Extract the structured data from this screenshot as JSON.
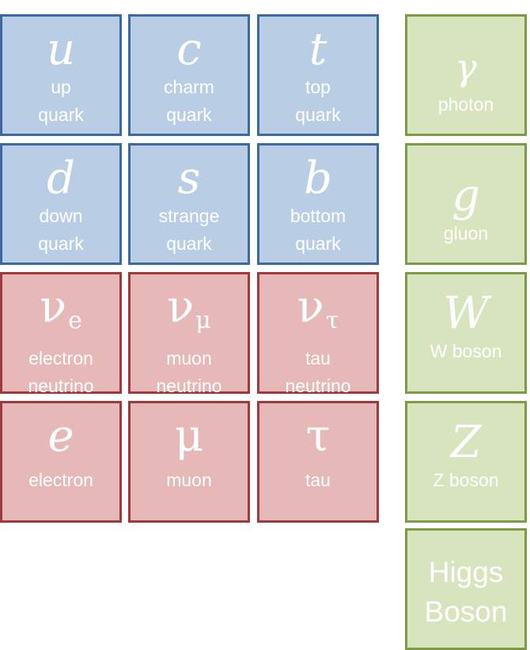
{
  "quarks": [
    {
      "symbol": "u",
      "name1": "up",
      "name2": "quark"
    },
    {
      "symbol": "c",
      "name1": "charm",
      "name2": "quark"
    },
    {
      "symbol": "t",
      "name1": "top",
      "name2": "quark"
    },
    {
      "symbol": "d",
      "name1": "down",
      "name2": "quark"
    },
    {
      "symbol": "s",
      "name1": "strange",
      "name2": "quark"
    },
    {
      "symbol": "b",
      "name1": "bottom",
      "name2": "quark"
    }
  ],
  "neutrinos": [
    {
      "symbol": "ν",
      "sub": "e",
      "name1": "electron",
      "name2": "neutrino"
    },
    {
      "symbol": "ν",
      "sub": "μ",
      "name1": "muon",
      "name2": "neutrino"
    },
    {
      "symbol": "ν",
      "sub": "τ",
      "name1": "tau",
      "name2": "neutrino"
    }
  ],
  "leptons": [
    {
      "symbol": "e",
      "name": "electron"
    },
    {
      "symbol": "μ",
      "name": "muon"
    },
    {
      "symbol": "τ",
      "name": "tau"
    }
  ],
  "bosons": [
    {
      "symbol": "γ",
      "name": "photon"
    },
    {
      "symbol": "g",
      "name": "gluon"
    },
    {
      "symbol": "W",
      "name": "W boson"
    },
    {
      "symbol": "Z",
      "name": "Z boson"
    },
    {
      "line1": "Higgs",
      "line2": "Boson"
    }
  ],
  "colors": {
    "quark_fill": "#b9cde5",
    "quark_border": "#3d69a3",
    "lepton_fill": "#e6b9b8",
    "lepton_border": "#a03a3a",
    "boson_fill": "#d7e4bd",
    "boson_border": "#7b9b45"
  }
}
